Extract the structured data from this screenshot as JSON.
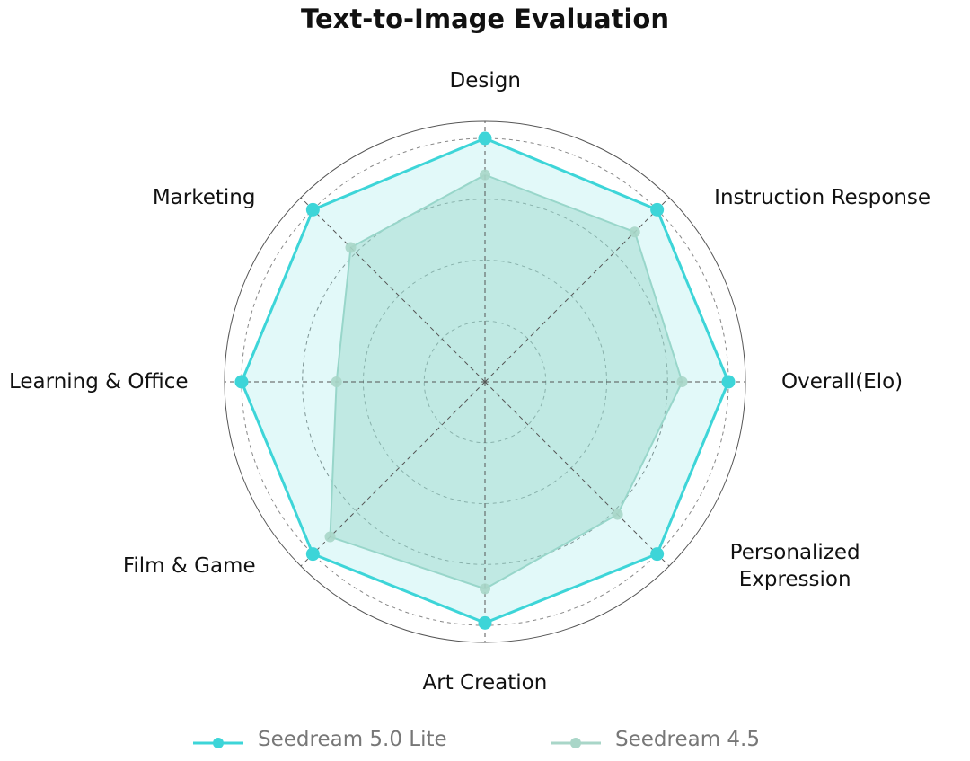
{
  "chart_data": {
    "type": "radar",
    "title": "Text-to-Image Evaluation",
    "categories": [
      "Design",
      "Instruction Response",
      "Overall(Elo)",
      "Personalized Expression",
      "Art Creation",
      "Film & Game",
      "Learning & Office",
      "Marketing"
    ],
    "series": [
      {
        "name": "Seedream 5.0 Lite",
        "color": "#3dd5d8",
        "values": [
          100,
          100,
          100,
          100,
          99,
          100,
          100,
          100
        ]
      },
      {
        "name": "Seedream 4.5",
        "color": "#a9d6c8",
        "values": [
          85,
          87,
          81,
          77,
          85,
          90,
          61,
          78
        ]
      }
    ],
    "rlim": [
      0,
      107
    ],
    "rticks": [
      25,
      50,
      75,
      100
    ],
    "grid": true
  }
}
